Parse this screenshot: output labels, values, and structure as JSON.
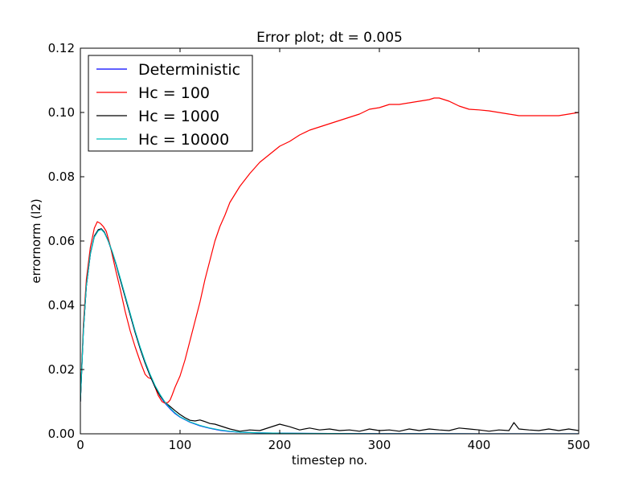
{
  "chart_data": {
    "type": "line",
    "title": "Error plot; dt = 0.005",
    "xlabel": "timestep no.",
    "ylabel": "errornorm (l2)",
    "xlim": [
      0,
      500
    ],
    "ylim": [
      0,
      0.12
    ],
    "xticks": [
      0,
      100,
      200,
      300,
      400,
      500
    ],
    "xtick_labels": [
      "0",
      "100",
      "200",
      "300",
      "400",
      "500"
    ],
    "yticks": [
      0,
      0.02,
      0.04,
      0.06,
      0.08,
      0.1,
      0.12
    ],
    "ytick_labels": [
      "0.00",
      "0.02",
      "0.04",
      "0.06",
      "0.08",
      "0.10",
      "0.12"
    ],
    "grid": false,
    "legend_position": "top-left",
    "series": [
      {
        "name": "Deterministic",
        "color": "#0000ff",
        "x": [
          0,
          3,
          6,
          10,
          14,
          18,
          21,
          24,
          28,
          32,
          36,
          40,
          45,
          50,
          55,
          60,
          65,
          70,
          75,
          80,
          85,
          90,
          95,
          100,
          110,
          120,
          130,
          140,
          150,
          160,
          180,
          200,
          250,
          300,
          350,
          400,
          450,
          500
        ],
        "y": [
          0.01,
          0.032,
          0.046,
          0.056,
          0.0615,
          0.0635,
          0.0638,
          0.0628,
          0.06,
          0.0565,
          0.0525,
          0.048,
          0.0425,
          0.037,
          0.0315,
          0.0265,
          0.022,
          0.018,
          0.0145,
          0.0118,
          0.0095,
          0.0078,
          0.0063,
          0.0052,
          0.0036,
          0.0025,
          0.0017,
          0.0011,
          0.0007,
          0.0005,
          0.0003,
          0.0002,
          0.0001,
          5e-05,
          3e-05,
          2e-05,
          1e-05,
          1e-05
        ]
      },
      {
        "name": "Hc = 100",
        "color": "#ff0000",
        "x": [
          0,
          3,
          6,
          10,
          14,
          17,
          20,
          23,
          26,
          30,
          35,
          40,
          45,
          50,
          55,
          60,
          65,
          68,
          72,
          75,
          78,
          82,
          85,
          88,
          90,
          92,
          95,
          100,
          105,
          110,
          115,
          120,
          125,
          130,
          135,
          140,
          145,
          150,
          160,
          170,
          180,
          190,
          200,
          210,
          220,
          230,
          240,
          250,
          260,
          270,
          280,
          290,
          300,
          310,
          320,
          330,
          340,
          350,
          355,
          360,
          365,
          370,
          380,
          390,
          400,
          410,
          420,
          430,
          440,
          450,
          460,
          470,
          480,
          490,
          500
        ],
        "y": [
          0.01,
          0.034,
          0.048,
          0.058,
          0.064,
          0.066,
          0.0655,
          0.0645,
          0.063,
          0.0585,
          0.0515,
          0.045,
          0.038,
          0.032,
          0.027,
          0.0225,
          0.0185,
          0.0175,
          0.017,
          0.0145,
          0.012,
          0.01,
          0.0095,
          0.0098,
          0.0105,
          0.012,
          0.0145,
          0.018,
          0.023,
          0.029,
          0.035,
          0.041,
          0.048,
          0.054,
          0.06,
          0.0645,
          0.068,
          0.072,
          0.077,
          0.081,
          0.0845,
          0.087,
          0.0895,
          0.091,
          0.093,
          0.0945,
          0.0955,
          0.0965,
          0.0975,
          0.0985,
          0.0995,
          0.101,
          0.1015,
          0.1025,
          0.1025,
          0.103,
          0.1035,
          0.104,
          0.1045,
          0.1045,
          0.104,
          0.1035,
          0.102,
          0.101,
          0.1008,
          0.1005,
          0.1,
          0.0995,
          0.099,
          0.099,
          0.099,
          0.099,
          0.099,
          0.0995,
          0.1
        ]
      },
      {
        "name": "Hc = 1000",
        "color": "#000000",
        "x": [
          0,
          3,
          6,
          10,
          14,
          18,
          21,
          24,
          28,
          32,
          36,
          40,
          45,
          50,
          55,
          60,
          65,
          70,
          75,
          80,
          85,
          90,
          95,
          100,
          105,
          110,
          115,
          120,
          125,
          130,
          135,
          140,
          150,
          160,
          170,
          180,
          190,
          200,
          210,
          220,
          230,
          240,
          250,
          260,
          270,
          280,
          290,
          300,
          310,
          320,
          330,
          340,
          350,
          360,
          370,
          380,
          390,
          400,
          410,
          420,
          430,
          435,
          440,
          450,
          460,
          470,
          480,
          490,
          500
        ],
        "y": [
          0.01,
          0.032,
          0.046,
          0.056,
          0.0615,
          0.0635,
          0.0638,
          0.0628,
          0.06,
          0.0565,
          0.0525,
          0.048,
          0.0425,
          0.037,
          0.0315,
          0.0265,
          0.022,
          0.018,
          0.0145,
          0.0118,
          0.0098,
          0.0085,
          0.0072,
          0.006,
          0.005,
          0.0042,
          0.004,
          0.0043,
          0.0038,
          0.0032,
          0.003,
          0.0025,
          0.0015,
          0.0008,
          0.0012,
          0.001,
          0.002,
          0.003,
          0.0022,
          0.0012,
          0.0018,
          0.0012,
          0.0015,
          0.001,
          0.0012,
          0.0008,
          0.0015,
          0.001,
          0.0012,
          0.0008,
          0.0015,
          0.001,
          0.0015,
          0.0012,
          0.001,
          0.0018,
          0.0015,
          0.0012,
          0.0008,
          0.0012,
          0.001,
          0.0035,
          0.0015,
          0.0012,
          0.001,
          0.0015,
          0.001,
          0.0015,
          0.001
        ]
      },
      {
        "name": "Hc = 10000",
        "color": "#00bfbf",
        "x": [
          0,
          3,
          6,
          10,
          14,
          18,
          21,
          24,
          28,
          32,
          36,
          40,
          45,
          50,
          55,
          60,
          65,
          70,
          75,
          80,
          85,
          90,
          95,
          100,
          110,
          120,
          130,
          140,
          150,
          160,
          180,
          200,
          250,
          300,
          350,
          400,
          450,
          500
        ],
        "y": [
          0.01,
          0.032,
          0.046,
          0.056,
          0.0612,
          0.0632,
          0.0636,
          0.0626,
          0.06,
          0.0567,
          0.0528,
          0.0485,
          0.043,
          0.0375,
          0.032,
          0.027,
          0.0225,
          0.0185,
          0.015,
          0.0122,
          0.0098,
          0.008,
          0.0065,
          0.0053,
          0.0037,
          0.0026,
          0.0018,
          0.0012,
          0.0008,
          0.0005,
          0.0003,
          0.0002,
          0.0001,
          5e-05,
          3e-05,
          2e-05,
          1e-05,
          1e-05
        ]
      }
    ]
  }
}
